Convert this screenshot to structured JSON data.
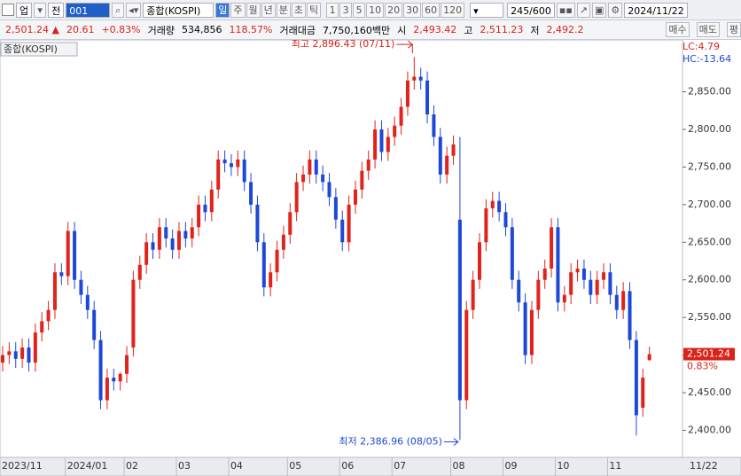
{
  "toolbar": {
    "market": "업",
    "scope": "전",
    "code": "001",
    "name": "종합(KOSPI)",
    "periods": [
      "일",
      "주",
      "월",
      "년",
      "분",
      "초",
      "틱"
    ],
    "intervals": [
      "1",
      "3",
      "5",
      "10",
      "20",
      "30",
      "60",
      "120"
    ],
    "count": "245/600",
    "date": "2024/11/22"
  },
  "quote": {
    "price": "2,501.24 ▲",
    "change": "20.61",
    "change_pct": "+0.83%",
    "volume_label": "거래량",
    "volume": "534,856",
    "volume_ratio": "118.57%",
    "amount_label": "거래대금",
    "amount": "7,750,160백만",
    "open_label": "시",
    "open": "2,493.42",
    "high_label": "고",
    "high": "2,511.23",
    "low_label": "저",
    "low": "2,492.2",
    "buy": "매수",
    "sell": "매도",
    "avg": "평"
  },
  "chart_data": {
    "type": "candlestick",
    "label": "종합(KOSPI)",
    "lc": "LC:4.79",
    "hc": "HC:-13.64",
    "up_color": "#e0241c",
    "down_color": "#1d48d8",
    "categories": [
      "2023/11",
      null,
      null,
      null,
      null,
      null,
      null,
      null,
      null,
      null,
      "2024/01",
      null,
      null,
      null,
      null,
      null,
      null,
      null,
      null,
      "02",
      null,
      null,
      null,
      null,
      null,
      null,
      null,
      "03",
      null,
      null,
      null,
      null,
      null,
      null,
      null,
      "04",
      null,
      null,
      null,
      null,
      null,
      null,
      null,
      null,
      "05",
      null,
      null,
      null,
      null,
      null,
      null,
      null,
      "06",
      null,
      null,
      null,
      null,
      null,
      null,
      null,
      "07",
      null,
      null,
      null,
      null,
      null,
      null,
      null,
      null,
      "08",
      null,
      null,
      null,
      null,
      null,
      null,
      null,
      "09",
      null,
      null,
      null,
      null,
      null,
      null,
      null,
      "10",
      null,
      null,
      null,
      null,
      null,
      null,
      null,
      "11",
      null,
      null,
      null,
      null,
      null,
      null
    ],
    "last_date_label": "11/22",
    "open": [
      2490,
      2500,
      2505,
      2495,
      2510,
      2490,
      2530,
      2545,
      2560,
      2610,
      2605,
      2665,
      2600,
      2580,
      2560,
      2520,
      2440,
      2470,
      2465,
      2475,
      2510,
      2600,
      2620,
      2650,
      2640,
      2670,
      2655,
      2640,
      2665,
      2655,
      2670,
      2700,
      2690,
      2720,
      2760,
      2755,
      2750,
      2760,
      2730,
      2700,
      2650,
      2590,
      2610,
      2640,
      2660,
      2690,
      2730,
      2740,
      2760,
      2740,
      2730,
      2710,
      2680,
      2650,
      2700,
      2720,
      2745,
      2760,
      2800,
      2770,
      2790,
      2805,
      2830,
      2865,
      2870,
      2865,
      2820,
      2790,
      2740,
      2765,
      2680,
      2440,
      2560,
      2600,
      2650,
      2695,
      2705,
      2690,
      2670,
      2600,
      2570,
      2500,
      2560,
      2600,
      2615,
      2670,
      2570,
      2580,
      2610,
      2615,
      2600,
      2580,
      2600,
      2610,
      2580,
      2560,
      2585,
      2520,
      2430,
      2493.42
    ],
    "high": [
      2512,
      2517,
      2517,
      2522,
      2522,
      2542,
      2557,
      2572,
      2622,
      2622,
      2677,
      2677,
      2612,
      2592,
      2572,
      2532,
      2482,
      2482,
      2477,
      2512,
      2612,
      2632,
      2662,
      2662,
      2682,
      2682,
      2667,
      2677,
      2677,
      2682,
      2712,
      2712,
      2732,
      2772,
      2772,
      2767,
      2772,
      2772,
      2742,
      2712,
      2662,
      2622,
      2652,
      2672,
      2702,
      2742,
      2752,
      2772,
      2772,
      2752,
      2742,
      2722,
      2692,
      2712,
      2732,
      2757,
      2772,
      2812,
      2812,
      2802,
      2817,
      2842,
      2877,
      2896.43,
      2882,
      2877,
      2832,
      2802,
      2777,
      2792,
      2790,
      2572,
      2612,
      2662,
      2707,
      2717,
      2717,
      2702,
      2682,
      2612,
      2582,
      2572,
      2612,
      2627,
      2682,
      2682,
      2592,
      2622,
      2627,
      2627,
      2612,
      2612,
      2622,
      2622,
      2592,
      2597,
      2597,
      2532,
      2482,
      2511.23
    ],
    "low": [
      2478,
      2488,
      2483,
      2483,
      2478,
      2478,
      2518,
      2533,
      2548,
      2593,
      2593,
      2588,
      2568,
      2548,
      2508,
      2428,
      2428,
      2453,
      2453,
      2463,
      2498,
      2588,
      2608,
      2628,
      2628,
      2643,
      2628,
      2628,
      2643,
      2643,
      2658,
      2678,
      2678,
      2708,
      2743,
      2738,
      2738,
      2718,
      2688,
      2638,
      2578,
      2578,
      2598,
      2628,
      2648,
      2678,
      2718,
      2728,
      2728,
      2718,
      2698,
      2668,
      2638,
      2638,
      2688,
      2708,
      2733,
      2748,
      2758,
      2758,
      2778,
      2793,
      2818,
      2853,
      2853,
      2808,
      2778,
      2728,
      2728,
      2753,
      2386.96,
      2428,
      2548,
      2588,
      2638,
      2683,
      2678,
      2658,
      2588,
      2558,
      2488,
      2488,
      2548,
      2588,
      2603,
      2558,
      2558,
      2568,
      2598,
      2588,
      2568,
      2568,
      2588,
      2568,
      2548,
      2548,
      2508,
      2393,
      2418,
      2492.2
    ],
    "close": [
      2500,
      2505,
      2495,
      2510,
      2490,
      2530,
      2545,
      2560,
      2610,
      2605,
      2665,
      2600,
      2580,
      2560,
      2520,
      2440,
      2470,
      2465,
      2475,
      2500,
      2600,
      2620,
      2650,
      2640,
      2670,
      2655,
      2640,
      2665,
      2655,
      2670,
      2700,
      2690,
      2720,
      2760,
      2755,
      2750,
      2760,
      2730,
      2700,
      2650,
      2590,
      2610,
      2640,
      2660,
      2690,
      2730,
      2740,
      2760,
      2740,
      2730,
      2710,
      2680,
      2650,
      2700,
      2720,
      2745,
      2760,
      2800,
      2770,
      2790,
      2805,
      2830,
      2865,
      2870,
      2865,
      2820,
      2790,
      2740,
      2765,
      2780,
      2440,
      2560,
      2600,
      2650,
      2695,
      2705,
      2690,
      2670,
      2600,
      2570,
      2500,
      2560,
      2600,
      2615,
      2670,
      2570,
      2580,
      2610,
      2615,
      2600,
      2580,
      2600,
      2610,
      2580,
      2560,
      2585,
      2520,
      2420,
      2470,
      2501.24
    ],
    "ylim": [
      2364,
      2919
    ],
    "yticks": [
      {
        "value": 2400,
        "label": "2,400.00"
      },
      {
        "value": 2450,
        "label": "2,450.00"
      },
      {
        "value": 2500,
        "label": "2,500.00"
      },
      {
        "value": 2550,
        "label": "2,550.00"
      },
      {
        "value": 2600,
        "label": "2,600.00"
      },
      {
        "value": 2650,
        "label": "2,650.00"
      },
      {
        "value": 2700,
        "label": "2,700.00"
      },
      {
        "value": 2750,
        "label": "2,750.00"
      },
      {
        "value": 2800,
        "label": "2,800.00"
      },
      {
        "value": 2850,
        "label": "2,850.00"
      }
    ],
    "high_annotation": "최고 2,896.43 (07/11)",
    "low_annotation": "최저 2,386.96 (08/05)",
    "last_label": "2,501.24",
    "last_change": "0.83%"
  }
}
